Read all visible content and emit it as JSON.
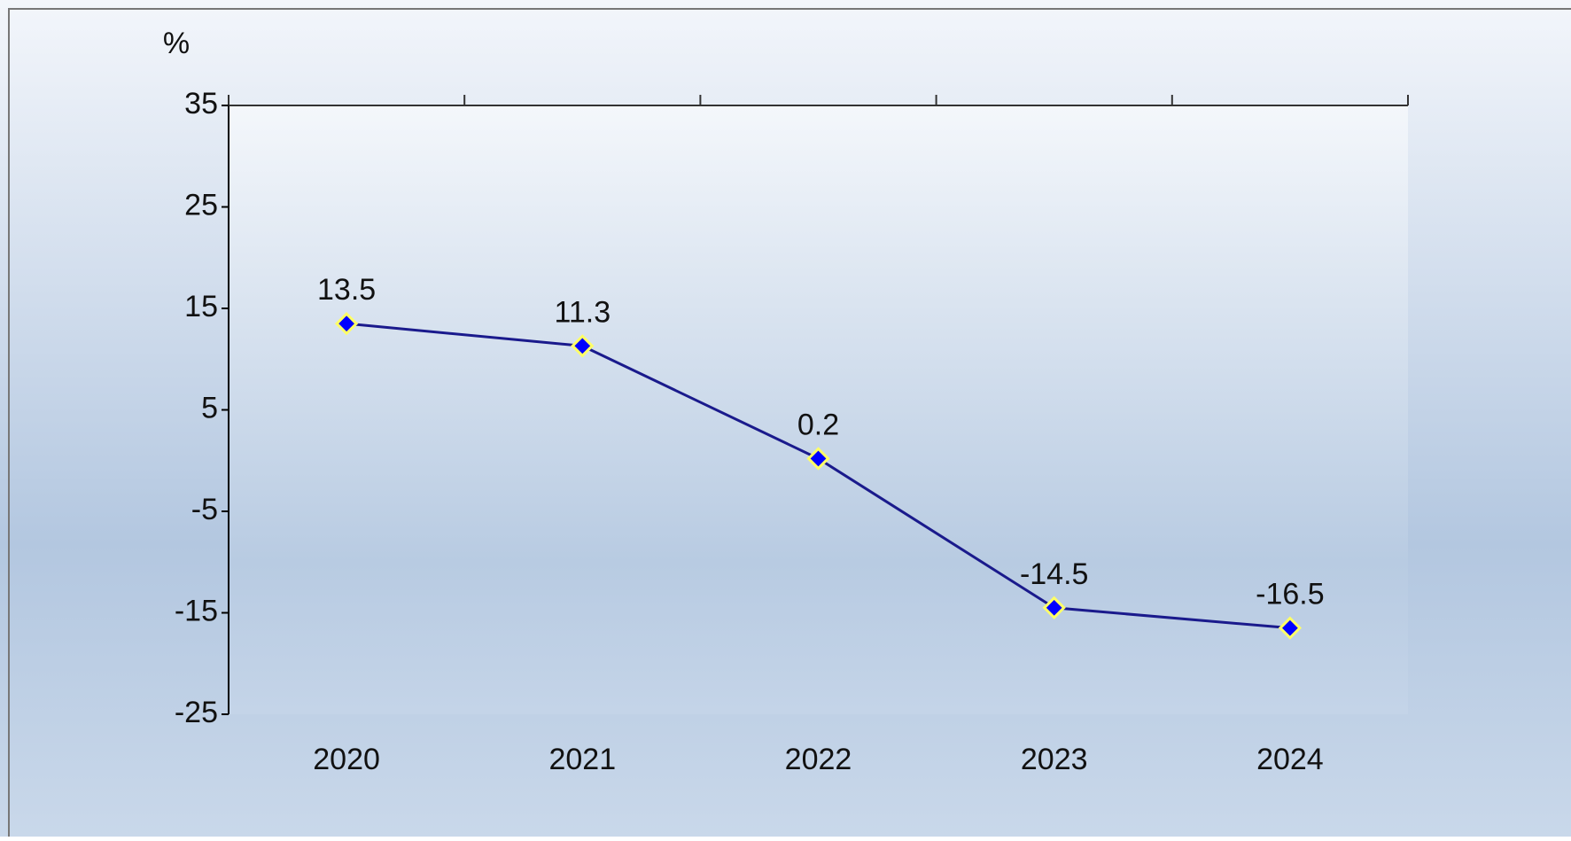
{
  "chart_data": {
    "type": "line",
    "y_label": "%",
    "categories": [
      "2020",
      "2021",
      "2022",
      "2023",
      "2024"
    ],
    "values": [
      13.5,
      11.3,
      0.2,
      -14.5,
      -16.5
    ],
    "color": "#1a1a8c",
    "marker_color": "#0000ff",
    "marker_edge": "#ffff66",
    "ylim": [
      -25,
      35
    ],
    "yticks": [
      -25,
      -15,
      -5,
      5,
      15,
      25,
      35
    ],
    "grid": false,
    "data_labels": true
  }
}
